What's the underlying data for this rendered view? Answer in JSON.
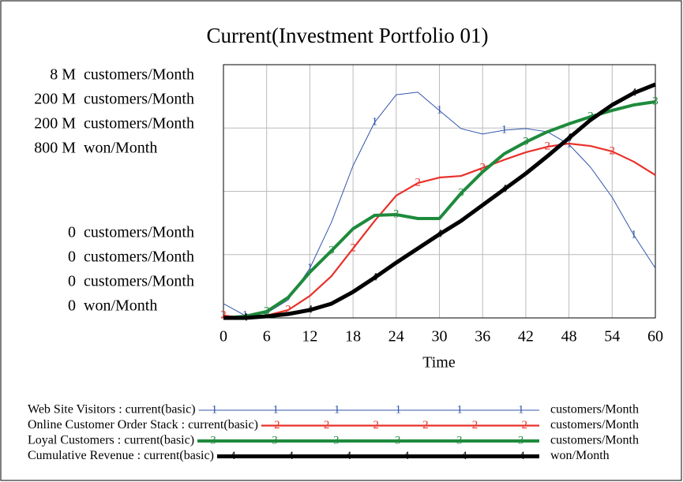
{
  "chart_data": {
    "type": "line",
    "title": "Current(Investment Portfolio 01)",
    "xlabel": "Time",
    "x": [
      0,
      3,
      6,
      9,
      12,
      15,
      18,
      21,
      24,
      27,
      30,
      33,
      36,
      39,
      42,
      45,
      48,
      51,
      54,
      57,
      60
    ],
    "xlim": [
      0,
      60
    ],
    "xticks": [
      0,
      6,
      12,
      18,
      24,
      30,
      36,
      42,
      48,
      54,
      60
    ],
    "grid": true,
    "series": [
      {
        "name": "Web Site Visitors : current(basic)",
        "marker": "1",
        "unit": "customers/Month",
        "color": "#3355aa",
        "width": 1,
        "ylim": [
          0,
          8000000
        ],
        "yticks": [
          0,
          {
            "value": 8000000,
            "label": "8 M"
          }
        ],
        "values": [
          449000,
          75000,
          150000,
          570000,
          1570000,
          3020000,
          4810000,
          6180000,
          7050000,
          7130000,
          6550000,
          5980000,
          5810000,
          5930000,
          5980000,
          5880000,
          5480000,
          4760000,
          3810000,
          2620000,
          1570000
        ]
      },
      {
        "name": "Online Customer Order Stack : current(basic)",
        "marker": "2",
        "unit": "customers/Month",
        "color": "#e8312a",
        "width": 2.2,
        "ylim": [
          0,
          200000000
        ],
        "yticks": [
          0,
          {
            "value": 200000000,
            "label": "200 M"
          }
        ],
        "values": [
          1870000,
          0,
          1870000,
          6230000,
          17400000,
          33000000,
          54800000,
          76600000,
          96600000,
          106500000,
          110900000,
          112100000,
          118400000,
          124900000,
          130800000,
          135200000,
          137700000,
          135800000,
          131500000,
          123400000,
          112800000
        ]
      },
      {
        "name": "Loyal Customers : current(basic)",
        "marker": "3",
        "unit": "customers/Month",
        "color": "#1e8a3c",
        "width": 4,
        "ylim": [
          0,
          200000000
        ],
        "yticks": [
          0,
          {
            "value": 200000000,
            "label": "200 M"
          }
        ],
        "values": [
          0,
          1250000,
          4980000,
          16200000,
          36100000,
          53000000,
          70400000,
          81000000,
          81600000,
          78500000,
          78500000,
          98400000,
          115300000,
          129600000,
          138900000,
          147000000,
          153300000,
          158900000,
          163900000,
          168200000,
          170700000
        ]
      },
      {
        "name": "Cumulative Revenue : current(basic)",
        "marker": "4",
        "unit": "won/Month",
        "color": "#000000",
        "width": 5,
        "ylim": [
          0,
          800000000
        ],
        "yticks": [
          0,
          {
            "value": 800000000,
            "label": "800 M"
          }
        ],
        "values": [
          0,
          0,
          5000000,
          12500000,
          24900000,
          44900000,
          82200000,
          127100000,
          174500000,
          219300000,
          264200000,
          306500000,
          356400000,
          406200000,
          456100000,
          510900000,
          568200000,
          625500000,
          672900000,
          710300000,
          737700000
        ]
      }
    ]
  }
}
